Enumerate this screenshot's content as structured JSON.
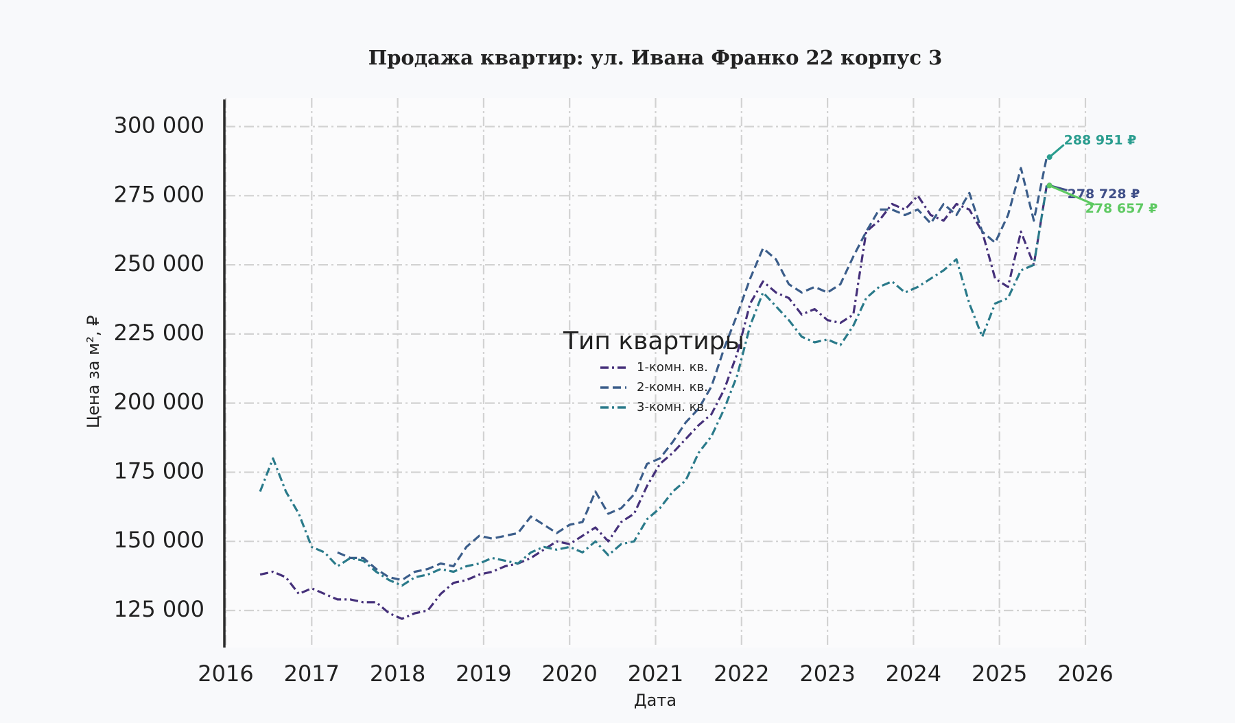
{
  "chart_data": {
    "type": "line",
    "title": "Продажа квартир: ул. Ивана Франко 22 корпус 3",
    "x_label": "Дата",
    "y_label": "Цена за м², ₽",
    "xlim": [
      2016,
      2026
    ],
    "xticks": [
      2016,
      2017,
      2018,
      2019,
      2020,
      2021,
      2022,
      2023,
      2024,
      2025,
      2026
    ],
    "ylim": [
      111600,
      310300
    ],
    "yticks": [
      {
        "value": 125000,
        "label": "125 000"
      },
      {
        "value": 150000,
        "label": "150 000"
      },
      {
        "value": 175000,
        "label": "175 000"
      },
      {
        "value": 200000,
        "label": "200 000"
      },
      {
        "value": 225000,
        "label": "225 000"
      },
      {
        "value": 250000,
        "label": "250 000"
      },
      {
        "value": 275000,
        "label": "275 000"
      },
      {
        "value": 300000,
        "label": "300 000"
      }
    ],
    "grid": true,
    "legend_title": "Тип квартиры",
    "legend_position": "center",
    "x": [
      2016.4,
      2016.55,
      2016.7,
      2016.85,
      2017.0,
      2017.15,
      2017.3,
      2017.45,
      2017.6,
      2017.75,
      2017.9,
      2018.05,
      2018.2,
      2018.35,
      2018.5,
      2018.65,
      2018.8,
      2018.95,
      2019.1,
      2019.25,
      2019.4,
      2019.55,
      2019.7,
      2019.85,
      2020.0,
      2020.15,
      2020.3,
      2020.45,
      2020.6,
      2020.75,
      2020.9,
      2021.05,
      2021.2,
      2021.35,
      2021.5,
      2021.65,
      2021.8,
      2021.95,
      2022.1,
      2022.25,
      2022.4,
      2022.55,
      2022.7,
      2022.85,
      2023.0,
      2023.15,
      2023.3,
      2023.45,
      2023.6,
      2023.75,
      2023.9,
      2024.05,
      2024.2,
      2024.35,
      2024.5,
      2024.65,
      2024.8,
      2024.95,
      2025.1,
      2025.25,
      2025.4,
      2025.55
    ],
    "series": [
      {
        "name": "1-комн. кв.",
        "color": "#45307a",
        "linestyle": "dashdot",
        "values": [
          138000,
          139000,
          137000,
          131000,
          133000,
          131000,
          129000,
          129000,
          128000,
          128000,
          124000,
          122000,
          124000,
          125000,
          131000,
          135000,
          136000,
          138000,
          139000,
          141000,
          142000,
          144000,
          147000,
          150000,
          149000,
          152000,
          155000,
          150000,
          157000,
          160000,
          170000,
          178000,
          182000,
          187000,
          192000,
          196000,
          205000,
          218000,
          236000,
          244000,
          240000,
          238000,
          232000,
          234000,
          230000,
          229000,
          232000,
          262000,
          266000,
          272000,
          270000,
          275000,
          268000,
          266000,
          272000,
          270000,
          262000,
          245000,
          242000,
          262000,
          250000,
          278728
        ]
      },
      {
        "name": "2-комн. кв.",
        "color": "#3b5d8a",
        "linestyle": "dashed",
        "values": [
          null,
          null,
          null,
          null,
          null,
          null,
          146000,
          144000,
          144000,
          140000,
          137000,
          136000,
          139000,
          140000,
          142000,
          141000,
          148000,
          152000,
          151000,
          152000,
          153000,
          159000,
          156000,
          153000,
          156000,
          157000,
          168000,
          160000,
          162000,
          167000,
          178000,
          180000,
          186000,
          193000,
          198000,
          206000,
          220000,
          232000,
          245000,
          256000,
          252000,
          243000,
          240000,
          242000,
          240000,
          243000,
          253000,
          262000,
          270000,
          270000,
          268000,
          270000,
          265000,
          272000,
          268000,
          276000,
          262000,
          258000,
          268000,
          285000,
          266000,
          288951
        ]
      },
      {
        "name": "3-комн. кв.",
        "color": "#2a7a8a",
        "linestyle": "dashdot",
        "values": [
          168000,
          180000,
          168000,
          160000,
          148000,
          146000,
          141000,
          144000,
          143000,
          139000,
          136000,
          134000,
          137000,
          138000,
          140000,
          139000,
          141000,
          142000,
          144000,
          143000,
          142000,
          146000,
          148000,
          147000,
          148000,
          146000,
          150000,
          145000,
          149000,
          150000,
          158000,
          162000,
          168000,
          172000,
          182000,
          188000,
          198000,
          210000,
          228000,
          240000,
          235000,
          230000,
          224000,
          222000,
          223000,
          221000,
          228000,
          238000,
          242000,
          244000,
          240000,
          242000,
          245000,
          248000,
          252000,
          236000,
          224000,
          236000,
          238000,
          248000,
          250000,
          278657
        ]
      }
    ],
    "annotations": [
      {
        "label": "288 951 ₽",
        "value": 288951,
        "color": "#2a9d8f"
      },
      {
        "label": "278 728 ₽",
        "value": 278728,
        "color": "#404f88"
      },
      {
        "label": "278 657 ₽",
        "value": 278657,
        "color": "#5ec962"
      }
    ]
  }
}
